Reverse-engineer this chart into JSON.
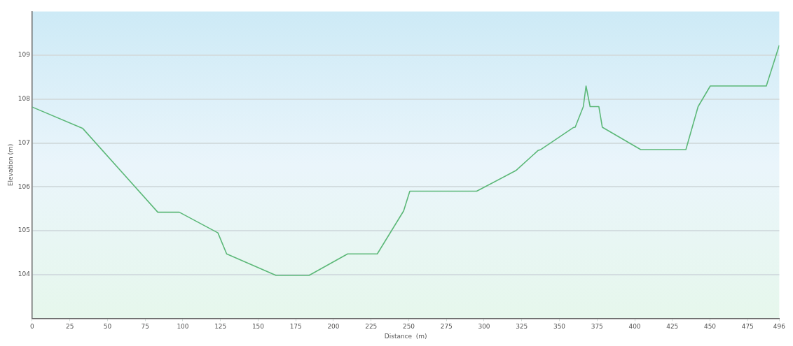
{
  "chart_data": {
    "type": "line",
    "xlabel": "Distance  (m)",
    "ylabel": "Elevation (m)",
    "x": [
      0,
      33.6,
      83.4,
      97.7,
      123.3,
      129.1,
      161.9,
      183.8,
      209.4,
      229.1,
      246.6,
      250.7,
      295.1,
      321.1,
      335.9,
      337.7,
      359.2,
      360.5,
      365.9,
      367.7,
      370.4,
      376.2,
      378.5,
      404,
      434,
      442.1,
      450.2,
      487.4,
      496
    ],
    "series": [
      {
        "color": "#5cb878",
        "values": [
          107.82,
          107.33,
          105.42,
          105.42,
          104.95,
          104.47,
          103.98,
          103.98,
          104.47,
          104.47,
          105.45,
          105.9,
          105.9,
          106.37,
          106.83,
          106.85,
          107.35,
          107.36,
          107.83,
          108.3,
          107.83,
          107.83,
          107.36,
          106.85,
          106.85,
          107.83,
          108.3,
          108.3,
          109.23
        ]
      }
    ],
    "xlim": [
      0,
      496
    ],
    "xticks": [
      0,
      25,
      50,
      75,
      100,
      125,
      150,
      175,
      200,
      225,
      250,
      275,
      300,
      325,
      350,
      375,
      400,
      425,
      450,
      475,
      496
    ],
    "ylim": [
      103,
      110
    ],
    "yticks": [
      104,
      105,
      106,
      107,
      108,
      109
    ],
    "grid": "y",
    "legend": false,
    "marker": "none",
    "line_style": "solid"
  }
}
